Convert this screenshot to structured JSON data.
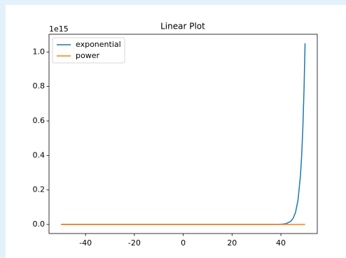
{
  "chart_data": {
    "type": "line",
    "title": "Linear Plot",
    "y_offset_label": "1e15",
    "x": [
      -50,
      -40,
      -30,
      -20,
      -10,
      0,
      10,
      20,
      30,
      36,
      38,
      40,
      42,
      44,
      45,
      46,
      47,
      48,
      48.5,
      49,
      49.5,
      49.9
    ],
    "series": [
      {
        "name": "exponential",
        "color": "#1f77b4",
        "values": [
          0,
          0,
          0,
          0,
          0,
          0,
          0,
          0,
          0,
          0.0001,
          0.0003,
          0.0011,
          0.0044,
          0.0176,
          0.0352,
          0.0704,
          0.1407,
          0.2815,
          0.398,
          0.563,
          0.796,
          1.05
        ]
      },
      {
        "name": "power",
        "color": "#ff7f0e",
        "values": [
          0,
          0,
          0,
          0,
          0,
          0,
          0,
          0,
          0,
          0,
          0,
          0,
          0,
          0,
          0,
          0,
          0,
          0,
          0,
          0,
          0,
          0
        ]
      }
    ],
    "xlim": [
      -54.95,
      54.9
    ],
    "ylim": [
      -0.0525,
      1.1025
    ],
    "xticks": [
      -40,
      -20,
      0,
      20,
      40
    ],
    "yticks": [
      {
        "value": 0,
        "label": "0.0"
      },
      0.2,
      0.4,
      0.6,
      0.8,
      {
        "value": 1,
        "label": "1.0"
      }
    ],
    "grid": false,
    "legend": "upper left"
  }
}
